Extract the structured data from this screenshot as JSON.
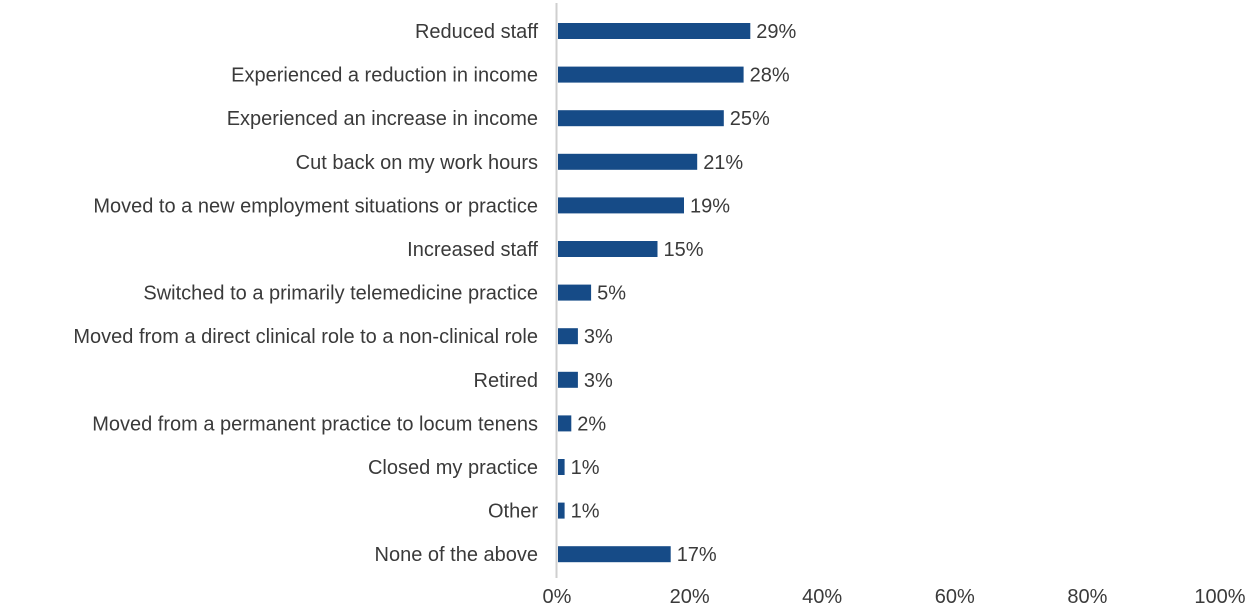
{
  "chart_data": {
    "type": "bar",
    "orientation": "horizontal",
    "title": "",
    "xlabel": "",
    "ylabel": "",
    "categories": [
      "Reduced staff",
      "Experienced a reduction in income",
      "Experienced an increase in income",
      "Cut back on my work hours",
      "Moved to a new employment situations or practice",
      "Increased staff",
      "Switched to a primarily telemedicine practice",
      "Moved from a direct clinical role to a non-clinical role",
      "Retired",
      "Moved from a permanent practice to locum tenens",
      "Closed my practice",
      "Other",
      "None of the above"
    ],
    "values": [
      29,
      28,
      25,
      21,
      19,
      15,
      5,
      3,
      3,
      2,
      1,
      1,
      17
    ],
    "value_labels": [
      "29%",
      "28%",
      "25%",
      "21%",
      "19%",
      "15%",
      "5%",
      "3%",
      "3%",
      "2%",
      "1%",
      "1%",
      "17%"
    ],
    "xlim": [
      0,
      100
    ],
    "x_ticks": [
      0,
      20,
      40,
      60,
      80,
      100
    ],
    "x_tick_labels": [
      "0%",
      "20%",
      "40%",
      "60%",
      "80%",
      "100%"
    ],
    "grid": false,
    "legend": "none",
    "colors": {
      "bar": "#164b87",
      "axis": "#cfcfcf",
      "text": "#3a3a3a"
    }
  }
}
